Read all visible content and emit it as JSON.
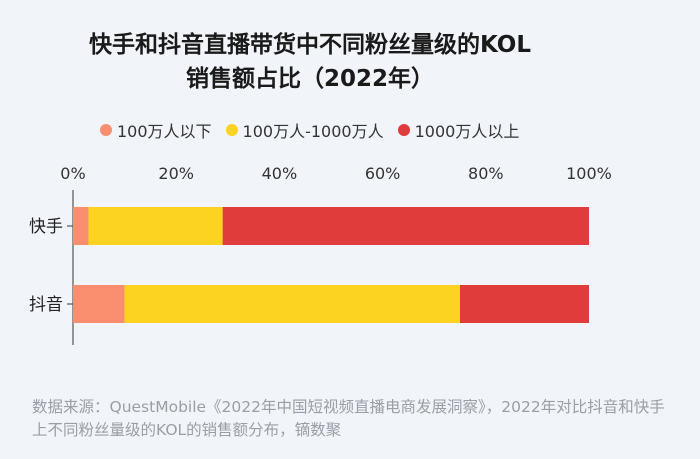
{
  "chart_data": {
    "type": "bar",
    "orientation": "horizontal",
    "stacked": true,
    "title_lines": [
      "快手和抖音直播带货中不同粉丝量级的KOL",
      "销售额占比（2022年）"
    ],
    "categories": [
      "快手",
      "抖音"
    ],
    "series": [
      {
        "name": "100万人以下",
        "color": "#f98f6f",
        "values": [
          3,
          10
        ]
      },
      {
        "name": "100万人-1000万人",
        "color": "#fdd321",
        "values": [
          26,
          65
        ]
      },
      {
        "name": "1000万人以上",
        "color": "#e03c3c",
        "values": [
          71,
          25
        ]
      }
    ],
    "xlim": [
      0,
      100
    ],
    "x_ticks": [
      "0%",
      "20%",
      "40%",
      "60%",
      "80%",
      "100%"
    ],
    "x_axis_position": "top",
    "legend_position": "top",
    "grid": false
  },
  "source": "数据来源：QuestMobile《2022年中国短视频直播电商发展洞察》，2022年对比抖音和快手上不同粉丝量级的KOL的销售额分布，镝数聚"
}
